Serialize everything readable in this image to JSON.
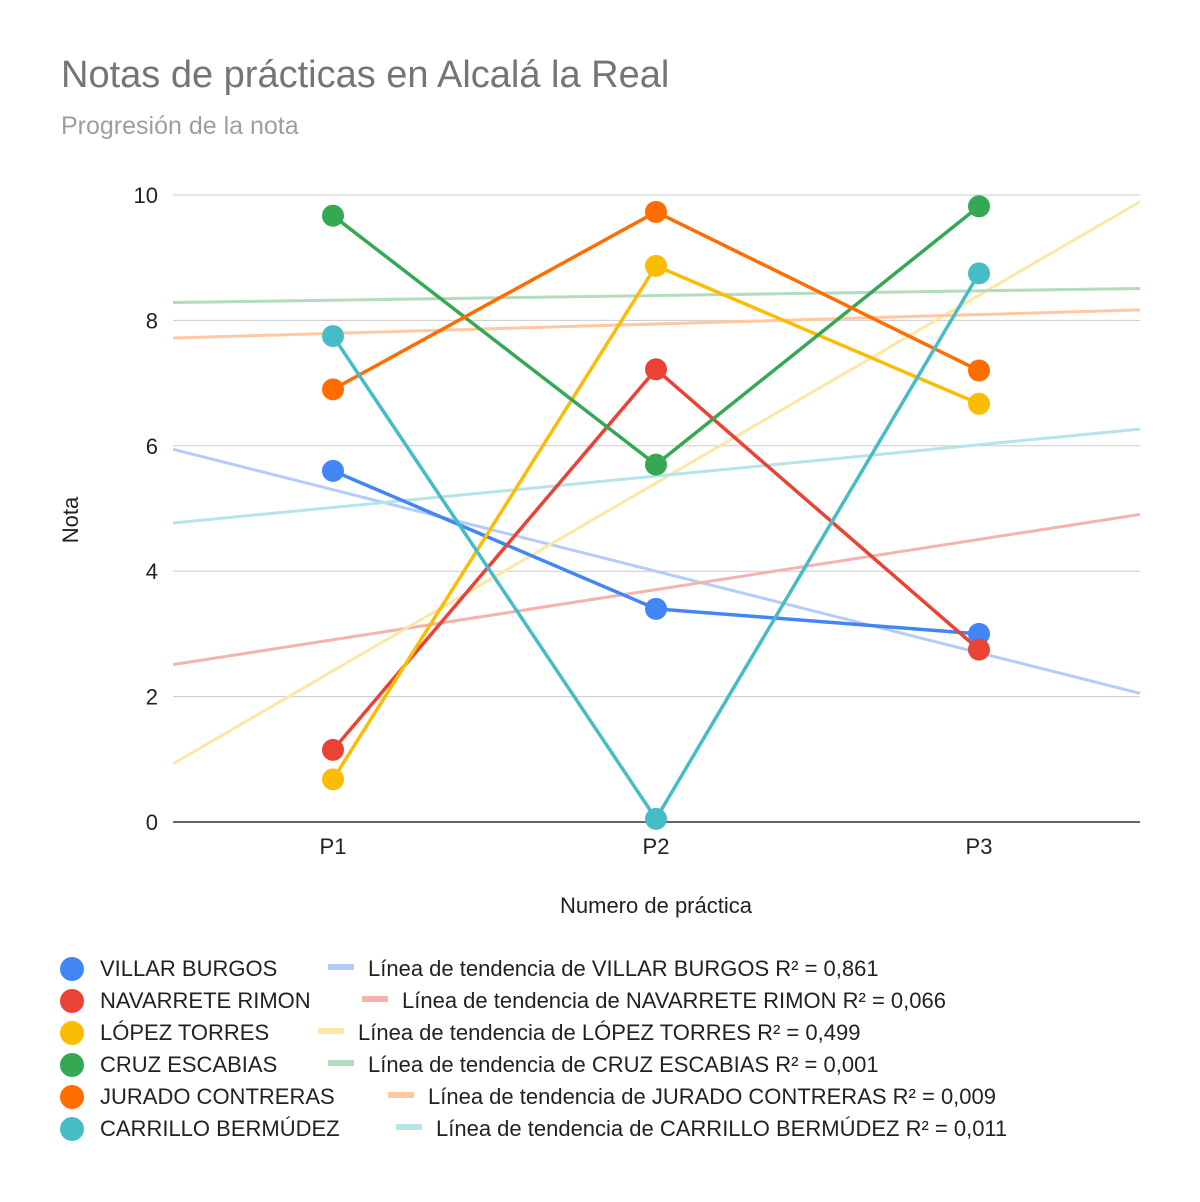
{
  "chart_data": {
    "type": "line",
    "title": "Notas de prácticas en Alcalá la Real",
    "subtitle": "Progresión de la nota",
    "xlabel": "Numero de práctica",
    "ylabel": "Nota",
    "categories": [
      "P1",
      "P2",
      "P3"
    ],
    "ylim": [
      0,
      10
    ],
    "yticks": [
      0,
      2,
      4,
      6,
      8,
      10
    ],
    "grid": true,
    "legend_position": "bottom",
    "series": [
      {
        "name": "VILLAR BURGOS",
        "color": "#4285f4",
        "trend_color": "#b3cdf9",
        "values": [
          5.6,
          3.4,
          3.0
        ],
        "trendline_label": "Línea de tendencia de VILLAR BURGOS R² = 0,861"
      },
      {
        "name": "NAVARRETE RIMON",
        "color": "#ea4335",
        "trend_color": "#f5b3ad",
        "values": [
          1.15,
          7.22,
          2.75
        ],
        "trendline_label": "Línea de tendencia de NAVARRETE RIMON R² = 0,066"
      },
      {
        "name": "LÓPEZ TORRES",
        "color": "#fbbc04",
        "trend_color": "#fce8a6",
        "values": [
          0.68,
          8.87,
          6.67
        ],
        "trendline_label": "Línea de tendencia de LÓPEZ TORRES R² = 0,499"
      },
      {
        "name": "CRUZ ESCABIAS",
        "color": "#34a853",
        "trend_color": "#b3dcbe",
        "values": [
          9.67,
          5.7,
          9.82
        ],
        "trendline_label": "Línea de tendencia de CRUZ ESCABIAS R² = 0,001"
      },
      {
        "name": "JURADO CONTRERAS",
        "color": "#ff6d01",
        "trend_color": "#ffc8a0",
        "values": [
          6.9,
          9.73,
          7.2
        ],
        "trendline_label": "Línea de tendencia de JURADO CONTRERAS R² = 0,009"
      },
      {
        "name": "CARRILLO BERMÚDEZ",
        "color": "#46bdc6",
        "trend_color": "#b6e4e8",
        "values": [
          7.75,
          0.05,
          8.75
        ],
        "trendline_label": "Línea de tendencia de CARRILLO BERMÚDEZ R² = 0,011"
      }
    ]
  }
}
